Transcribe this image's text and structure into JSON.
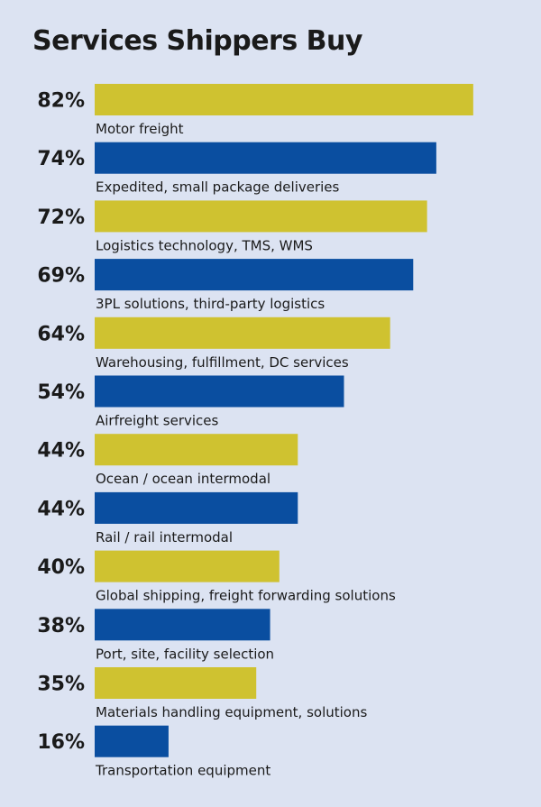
{
  "chart_data": {
    "type": "bar",
    "orientation": "horizontal",
    "title": "Services Shippers Buy",
    "categories": [
      "Motor freight",
      "Expedited, small package deliveries",
      "Logistics technology, TMS, WMS",
      "3PL solutions, third-party logistics",
      "Warehousing, fulfillment, DC services",
      "Airfreight services",
      "Ocean / ocean intermodal",
      "Rail / rail intermodal",
      "Global shipping, freight forwarding solutions",
      "Port, site, facility selection",
      "Materials handling equipment, solutions",
      "Transportation equipment"
    ],
    "values": [
      82,
      74,
      72,
      69,
      64,
      54,
      44,
      44,
      40,
      38,
      35,
      16
    ],
    "value_labels": [
      "82%",
      "74%",
      "72%",
      "69%",
      "64%",
      "54%",
      "44%",
      "44%",
      "40%",
      "38%",
      "35%",
      "16%"
    ],
    "unit": "%",
    "colors": [
      "#cfc230",
      "#0a4ea0"
    ],
    "color_pattern": "alternating",
    "grid": false,
    "legend": "none"
  }
}
